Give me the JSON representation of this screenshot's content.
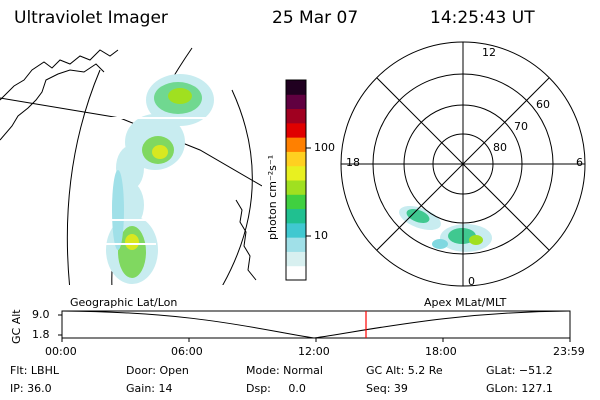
{
  "header": {
    "instrument": "Ultraviolet Imager",
    "date": "25 Mar 07",
    "time": "14:25:43 UT"
  },
  "colorbar": {
    "unit_label": "photon cm⁻²s⁻¹",
    "ticks": [
      "100",
      "10"
    ],
    "colors": [
      "#ffffff",
      "#d8f0f0",
      "#a0e0e8",
      "#40c8d0",
      "#20c090",
      "#40d040",
      "#a0e020",
      "#e8f020",
      "#ffd020",
      "#ff8000",
      "#e00000",
      "#a00020",
      "#600040",
      "#200020"
    ]
  },
  "polar": {
    "hour_labels": {
      "top": "12",
      "left": "18",
      "right": "6",
      "bottom": "0"
    },
    "lat_labels": [
      "60",
      "70",
      "80"
    ]
  },
  "map_label_left": "Geographic Lat/Lon",
  "map_label_right": "Apex MLat/MLT",
  "altitude_plot": {
    "ylabel": "GC Alt",
    "y_ticks": [
      "9.0",
      "1.8"
    ],
    "x_ticks": [
      "00:00",
      "06:00",
      "12:00",
      "18:00",
      "23:59"
    ],
    "current_time_color": "#ff0000"
  },
  "info": {
    "row1": [
      "Flt: LBHL",
      "Door: Open",
      "Mode: Normal",
      "GC Alt: 5.2 Re",
      "GLat: −51.2"
    ],
    "row2": [
      "IP: 36.0",
      "Gain: 14",
      "Dsp:     0.0",
      "Seq: 39",
      "GLon: 127.1"
    ]
  }
}
